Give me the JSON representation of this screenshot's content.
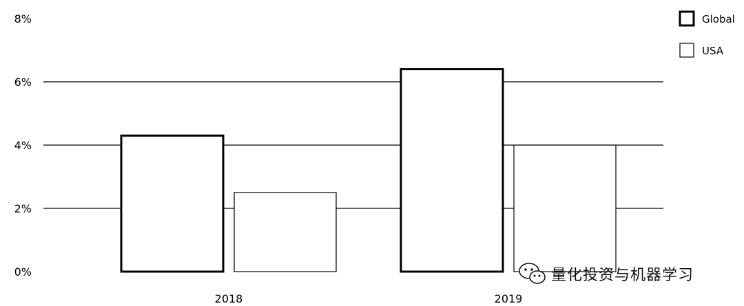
{
  "chart_data": {
    "type": "bar",
    "title": "",
    "xlabel": "",
    "ylabel": "",
    "categories": [
      "2018",
      "2019"
    ],
    "series": [
      {
        "name": "Global",
        "values": [
          4.3,
          6.4
        ],
        "stroke": "#000000",
        "stroke_weight": "thick"
      },
      {
        "name": "USA",
        "values": [
          2.5,
          4.0
        ],
        "stroke": "#000000",
        "stroke_weight": "thin"
      }
    ],
    "ylim": [
      0,
      8
    ],
    "yticks": [
      0,
      2,
      4,
      6,
      8
    ],
    "ytick_labels": [
      "0%",
      "2%",
      "4%",
      "6%",
      "8%"
    ],
    "grid": true,
    "legend_position": "top-right",
    "colors": {
      "background": "#ffffff",
      "ink": "#000000"
    }
  },
  "watermark": {
    "text": "量化投资与机器学习",
    "icon": "wechat-icon"
  }
}
